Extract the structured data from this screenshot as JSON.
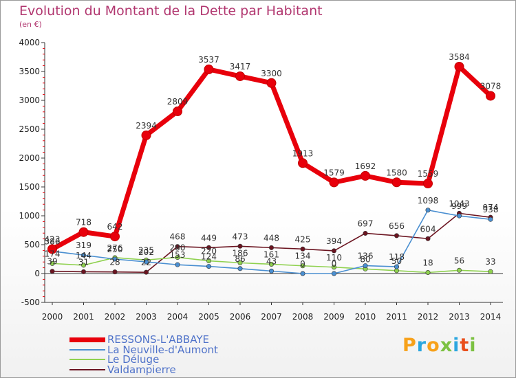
{
  "header": {
    "title": "Evolution du Montant de la Dette par Habitant",
    "unit": "(en €)"
  },
  "logo": {
    "text": "Proxiti",
    "colors": [
      "#f7a11a",
      "#2aa6df",
      "#f7a11a",
      "#7cc142",
      "#2aa6df",
      "#e94e1b",
      "#7cc142"
    ]
  },
  "chart_data": {
    "type": "line",
    "title": "Evolution du Montant de la Dette par Habitant",
    "subtitle": "(en €)",
    "xlabel": "",
    "ylabel": "",
    "x": [
      "2000",
      "2001",
      "2002",
      "2003",
      "2004",
      "2005",
      "2006",
      "2007",
      "2008",
      "2009",
      "2010",
      "2011",
      "2012",
      "2013",
      "2014"
    ],
    "ylim": [
      -500,
      4000
    ],
    "yticks": [
      -500,
      0,
      500,
      1000,
      1500,
      2000,
      2500,
      3000,
      3500,
      4000
    ],
    "grid": false,
    "legend": "bottom-left",
    "series": [
      {
        "name": "RESSONS-L'ABBAYE",
        "color": "#e8000b",
        "values": [
          423,
          718,
          642,
          2394,
          2809,
          3537,
          3417,
          3300,
          1913,
          1579,
          1692,
          1580,
          1559,
          3584,
          3078
        ],
        "labels": [
          "423",
          "718",
          "642",
          "2394",
          "2809",
          "3537",
          "3417",
          "3300",
          "1913",
          "1579",
          "1692",
          "1580",
          "1559",
          "3584",
          "3078"
        ]
      },
      {
        "name": "La Neuville-d'Aumont",
        "color": "#4a8fd1",
        "values": [
          386,
          319,
          250,
          202,
          153,
          124,
          86,
          43,
          0,
          0,
          136,
          118,
          1098,
          999,
          938
        ],
        "labels": [
          "386",
          "319",
          "250",
          "202",
          "153",
          "124",
          "86",
          "43",
          "0",
          "0",
          "136",
          "118",
          "1098",
          "999",
          "938"
        ]
      },
      {
        "name": "Le Déluge",
        "color": "#8fd14f",
        "values": [
          174,
          144,
          276,
          235,
          280,
          220,
          186,
          161,
          134,
          110,
          80,
          50,
          18,
          56,
          33
        ],
        "labels": [
          "174",
          "144",
          "276",
          "235",
          "280",
          "220",
          "186",
          "161",
          "134",
          "110",
          "80",
          "50",
          "18",
          "56",
          "33"
        ]
      },
      {
        "name": "Valdampierre",
        "color": "#6b1420",
        "values": [
          39,
          31,
          28,
          22,
          468,
          449,
          473,
          448,
          425,
          394,
          697,
          656,
          604,
          1043,
          974
        ],
        "labels": [
          "39",
          "31",
          "28",
          "22",
          "468",
          "449",
          "473",
          "448",
          "425",
          "394",
          "697",
          "656",
          "604",
          "1043",
          "974"
        ]
      }
    ]
  }
}
